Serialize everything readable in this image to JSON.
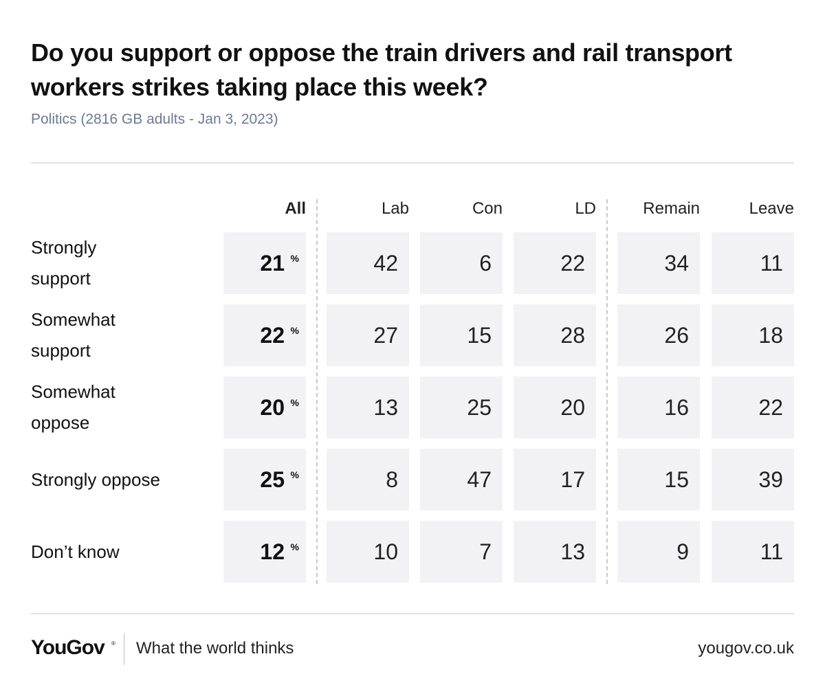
{
  "chart_data": {
    "type": "table",
    "title": "Do you support or oppose the train drivers and rail transport workers strikes taking place this week?",
    "subtitle": "Politics (2816 GB adults - Jan 3, 2023)",
    "columns": [
      "All",
      "Lab",
      "Con",
      "LD",
      "Remain",
      "Leave"
    ],
    "pct_symbol": "%",
    "rows": [
      {
        "label_lines": [
          "Strongly",
          "support"
        ],
        "values": [
          "21",
          "42",
          "6",
          "22",
          "34",
          "11"
        ]
      },
      {
        "label_lines": [
          "Somewhat",
          "support"
        ],
        "values": [
          "22",
          "27",
          "15",
          "28",
          "26",
          "18"
        ]
      },
      {
        "label_lines": [
          "Somewhat",
          "oppose"
        ],
        "values": [
          "20",
          "13",
          "25",
          "20",
          "16",
          "22"
        ]
      },
      {
        "label_lines": [
          "Strongly oppose"
        ],
        "values": [
          "25",
          "8",
          "47",
          "17",
          "15",
          "39"
        ]
      },
      {
        "label_lines": [
          "Don’t know"
        ],
        "values": [
          "12",
          "10",
          "7",
          "13",
          "9",
          "11"
        ]
      }
    ]
  },
  "footer": {
    "brand": "YouGov",
    "brand_mark": "®",
    "tagline": "What the world thinks",
    "site": "yougov.co.uk"
  },
  "colors": {
    "title": "#111111",
    "subtitle": "#6b7a99",
    "cell_background": "#f2f2f4",
    "divider": "#c9c9c9"
  }
}
